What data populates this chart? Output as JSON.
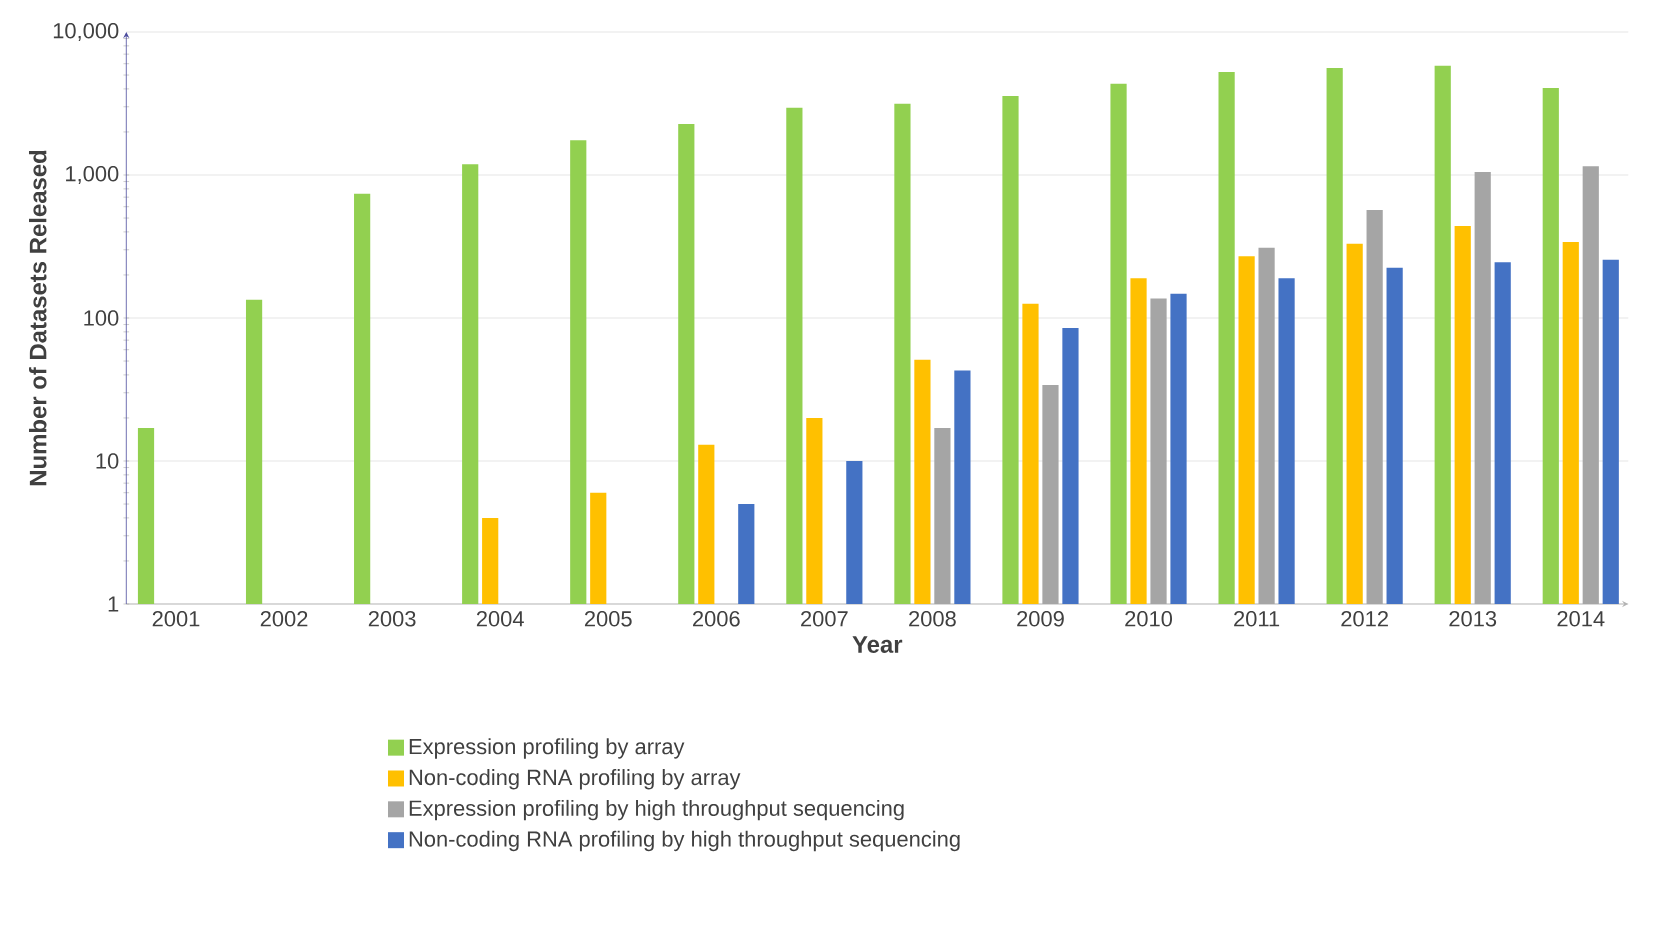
{
  "chart_data": {
    "type": "bar",
    "xlabel": "Year",
    "ylabel": "Number of Datasets Released",
    "log": "y",
    "grid": "y",
    "legend": "bottom",
    "categories": [
      "2001",
      "2002",
      "2003",
      "2004",
      "2005",
      "2006",
      "2007",
      "2008",
      "2009",
      "2010",
      "2011",
      "2012",
      "2013",
      "2014"
    ],
    "ylim": [
      1,
      10000
    ],
    "yticks": [
      1,
      10,
      100,
      {
        "value": 1000,
        "label": "1,000"
      },
      {
        "value": 10000,
        "label": "10,000"
      }
    ],
    "series": [
      {
        "name": "Expression profiling by array",
        "color": "#92d050",
        "values": [
          17,
          134,
          740,
          1190,
          1750,
          2270,
          2950,
          3150,
          3570,
          4350,
          5250,
          5600,
          5800,
          4050
        ]
      },
      {
        "name": "Non-coding RNA profiling by array",
        "color": "#ffc000",
        "values": [
          null,
          null,
          null,
          4,
          6,
          13,
          20,
          51,
          126,
          190,
          270,
          330,
          440,
          340
        ]
      },
      {
        "name": "Expression profiling by high throughput sequencing",
        "color": "#a5a5a5",
        "values": [
          null,
          null,
          null,
          null,
          null,
          null,
          null,
          17,
          34,
          137,
          310,
          570,
          1050,
          1150
        ]
      },
      {
        "name": "Non-coding RNA profiling by high throughput sequencing",
        "color": "#4472c4",
        "values": [
          null,
          null,
          null,
          null,
          null,
          5,
          10,
          43,
          85,
          148,
          190,
          225,
          245,
          255
        ]
      }
    ]
  }
}
